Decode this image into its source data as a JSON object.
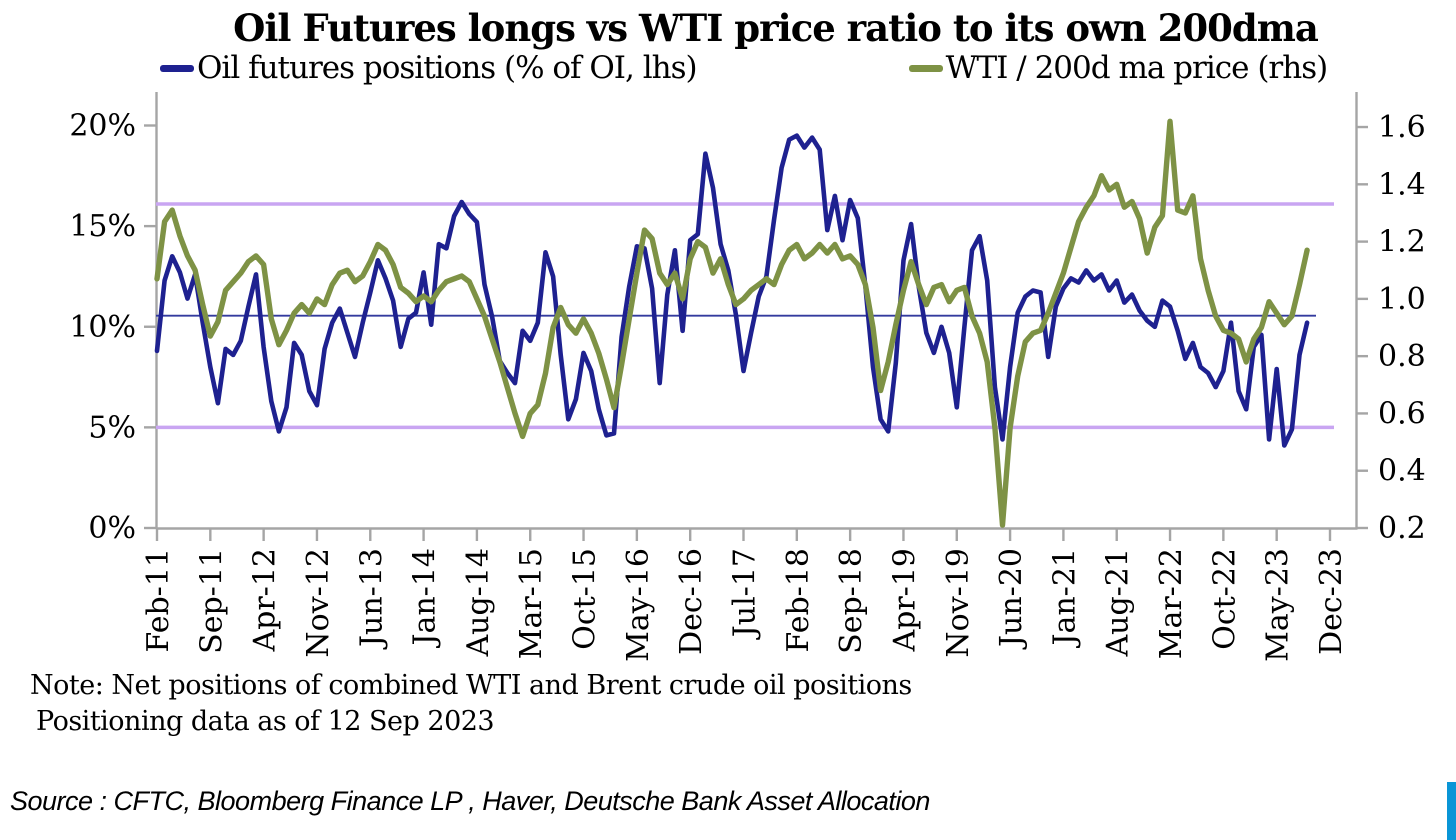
{
  "title": "Oil Futures longs vs WTI price ratio to its own 200dma",
  "legend": [
    {
      "label": "Oil futures positions (% of OI, lhs)",
      "color": "#1E2190"
    },
    {
      "label": "WTI / 200d ma price (rhs)",
      "color": "#7E9245"
    }
  ],
  "notes": [
    "Note: Net positions of combined WTI and Brent crude oil positions",
    "Positioning data as of 12 Sep 2023"
  ],
  "source": "Source : CFTC, Bloomberg Finance LP , Haver, Deutsche Bank Asset Allocation",
  "accent_bar_color": "#0995D6",
  "chart_data": {
    "type": "line",
    "title": "Oil Futures longs vs WTI price ratio to its own 200dma",
    "legend_position": "top",
    "grid": false,
    "x_tick_labels": [
      "Feb-11",
      "Sep-11",
      "Apr-12",
      "Nov-12",
      "Jun-13",
      "Jan-14",
      "Aug-14",
      "Mar-15",
      "Oct-15",
      "May-16",
      "Dec-16",
      "Jul-17",
      "Feb-18",
      "Sep-18",
      "Apr-19",
      "Nov-19",
      "Jun-20",
      "Jan-21",
      "Aug-21",
      "Mar-22",
      "Oct-22",
      "May-23",
      "Dec-23"
    ],
    "left_axis": {
      "tick_labels": [
        "0%",
        "5%",
        "10%",
        "15%",
        "20%"
      ],
      "tick_values": [
        0,
        5,
        10,
        15,
        20
      ],
      "range": [
        0,
        21
      ],
      "title": "Oil futures positions (% of OI)"
    },
    "right_axis": {
      "tick_labels": [
        "0.2",
        "0.4",
        "0.6",
        "0.8",
        "1.0",
        "1.2",
        "1.4",
        "1.6"
      ],
      "tick_values": [
        0.2,
        0.4,
        0.6,
        0.8,
        1.0,
        1.2,
        1.4,
        1.6
      ],
      "range": [
        0.2,
        1.6
      ],
      "title": "WTI / 200d ma price ratio"
    },
    "reference_lines": [
      {
        "axis": "left",
        "value": 16.1,
        "color": "#C9A5F2",
        "width": 3.5
      },
      {
        "axis": "left",
        "value": 10.55,
        "color": "#333A9E",
        "width": 1.8
      },
      {
        "axis": "left",
        "value": 5.0,
        "color": "#C9A5F2",
        "width": 3.5
      }
    ],
    "series": [
      {
        "name": "Oil futures positions (% of OI, lhs)",
        "axis": "left",
        "color": "#1E2190",
        "stroke_width": 4.6,
        "start": "Feb-2011",
        "end": "Sep-2023",
        "frequency": "monthly",
        "values": [
          8.8,
          12.3,
          13.5,
          12.7,
          11.4,
          12.6,
          10.2,
          8.0,
          6.2,
          8.9,
          8.6,
          9.3,
          11.0,
          12.6,
          9.0,
          6.3,
          4.8,
          6.0,
          9.2,
          8.6,
          6.8,
          6.1,
          8.9,
          10.2,
          10.9,
          9.7,
          8.5,
          10.2,
          11.7,
          13.3,
          12.4,
          11.3,
          9.0,
          10.4,
          10.7,
          12.7,
          10.1,
          14.1,
          13.9,
          15.5,
          16.2,
          15.6,
          15.2,
          12.1,
          10.5,
          8.3,
          7.7,
          7.2,
          9.8,
          9.3,
          10.2,
          13.7,
          12.5,
          8.6,
          5.4,
          6.4,
          8.7,
          7.8,
          5.9,
          4.6,
          4.7,
          9.5,
          12.0,
          14.0,
          13.9,
          11.9,
          7.2,
          11.6,
          13.8,
          9.8,
          14.3,
          14.6,
          18.6,
          16.9,
          14.1,
          12.8,
          10.6,
          7.8,
          9.7,
          11.5,
          12.5,
          15.3,
          17.9,
          19.3,
          19.5,
          18.9,
          19.4,
          18.8,
          14.8,
          16.5,
          14.3,
          16.3,
          15.4,
          12.0,
          8.0,
          5.4,
          4.8,
          8.2,
          13.3,
          15.1,
          12.0,
          9.7,
          8.7,
          10.0,
          8.7,
          6.0,
          10.0,
          13.8,
          14.5,
          12.3,
          7.0,
          4.4,
          8.0,
          10.7,
          11.5,
          11.8,
          11.7,
          8.5,
          11.0,
          11.9,
          12.4,
          12.2,
          12.8,
          12.3,
          12.6,
          11.8,
          12.3,
          11.2,
          11.6,
          10.8,
          10.3,
          10.0,
          11.3,
          11.0,
          9.8,
          8.4,
          9.2,
          8.0,
          7.7,
          7.0,
          7.8,
          10.2,
          6.8,
          5.9,
          9.0,
          9.6,
          4.4,
          7.9,
          4.1,
          4.9,
          8.6,
          10.2
        ]
      },
      {
        "name": "WTI / 200d ma price (rhs)",
        "axis": "right",
        "color": "#7E9245",
        "stroke_width": 5.4,
        "start": "Feb-2011",
        "end": "Sep-2023",
        "frequency": "monthly",
        "values": [
          1.07,
          1.27,
          1.31,
          1.22,
          1.15,
          1.1,
          0.98,
          0.87,
          0.92,
          1.03,
          1.06,
          1.09,
          1.13,
          1.15,
          1.12,
          0.93,
          0.84,
          0.89,
          0.95,
          0.98,
          0.95,
          1.0,
          0.98,
          1.05,
          1.09,
          1.1,
          1.06,
          1.08,
          1.13,
          1.19,
          1.17,
          1.12,
          1.04,
          1.02,
          0.99,
          1.01,
          0.99,
          1.03,
          1.06,
          1.07,
          1.08,
          1.06,
          1.0,
          0.94,
          0.86,
          0.78,
          0.69,
          0.6,
          0.52,
          0.6,
          0.63,
          0.74,
          0.9,
          0.97,
          0.91,
          0.88,
          0.93,
          0.88,
          0.81,
          0.72,
          0.62,
          0.77,
          0.93,
          1.09,
          1.24,
          1.21,
          1.09,
          1.05,
          1.09,
          1.0,
          1.14,
          1.2,
          1.18,
          1.09,
          1.14,
          1.05,
          0.98,
          1.0,
          1.03,
          1.05,
          1.07,
          1.05,
          1.12,
          1.17,
          1.19,
          1.14,
          1.16,
          1.19,
          1.16,
          1.19,
          1.14,
          1.15,
          1.12,
          1.05,
          0.9,
          0.68,
          0.78,
          0.91,
          1.03,
          1.13,
          1.05,
          0.98,
          1.04,
          1.05,
          0.99,
          1.03,
          1.04,
          0.94,
          0.88,
          0.78,
          0.55,
          0.21,
          0.55,
          0.73,
          0.85,
          0.88,
          0.89,
          0.95,
          1.02,
          1.09,
          1.18,
          1.27,
          1.32,
          1.36,
          1.43,
          1.38,
          1.4,
          1.32,
          1.34,
          1.28,
          1.16,
          1.25,
          1.29,
          1.62,
          1.31,
          1.3,
          1.36,
          1.14,
          1.03,
          0.94,
          0.89,
          0.88,
          0.86,
          0.78,
          0.86,
          0.9,
          0.99,
          0.95,
          0.91,
          0.94,
          1.05,
          1.17
        ]
      }
    ]
  }
}
